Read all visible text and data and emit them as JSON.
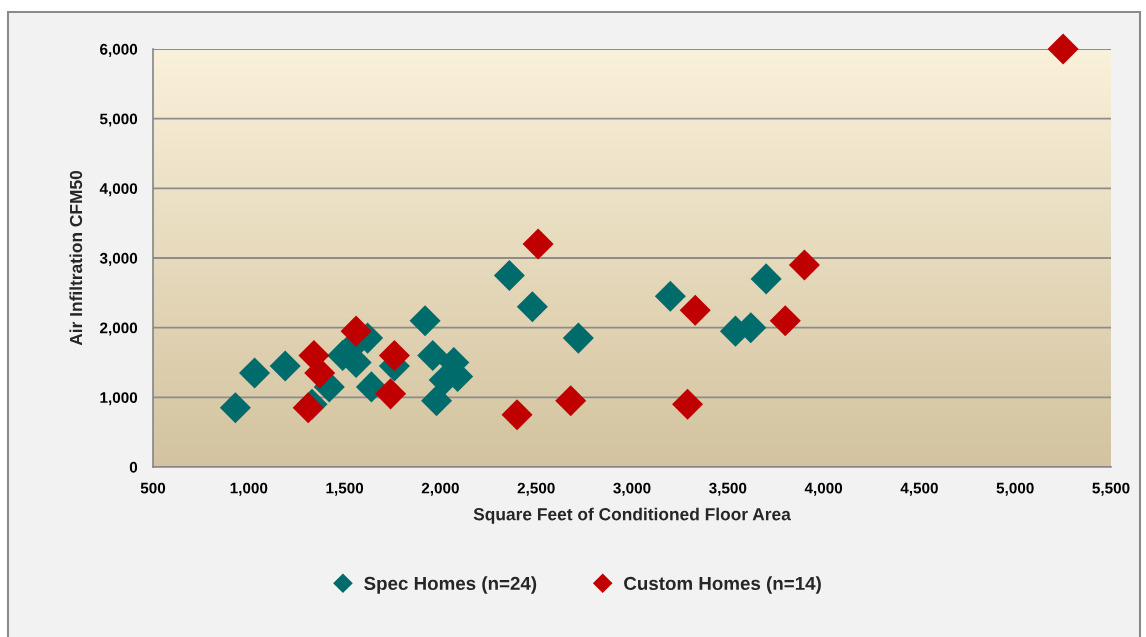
{
  "chart_data": {
    "type": "scatter",
    "xlabel": "Square Feet of Conditioned Floor Area",
    "ylabel": "Air Infiltration CFM50",
    "series": [
      {
        "name": "Spec Homes (n=24)",
        "color": "#006B6B",
        "x": [
          930,
          1030,
          1190,
          1330,
          1420,
          1490,
          1530,
          1560,
          1620,
          1640,
          1760,
          1920,
          1960,
          2070,
          2020,
          2090,
          1980,
          2360,
          2480,
          2720,
          3200,
          3540,
          3620,
          3700
        ],
        "values": [
          850,
          1350,
          1450,
          900,
          1150,
          1600,
          1700,
          1500,
          1850,
          1150,
          1450,
          2100,
          1600,
          1500,
          1250,
          1300,
          950,
          2750,
          2300,
          1850,
          2450,
          1950,
          2000,
          2700
        ]
      },
      {
        "name": "Custom Homes (n=14)",
        "color": "#C00000",
        "x": [
          1340,
          1370,
          1310,
          1560,
          1760,
          1740,
          2510,
          2400,
          2680,
          3330,
          3290,
          3800,
          3900,
          5250
        ],
        "values": [
          1600,
          1350,
          850,
          1950,
          1600,
          1050,
          3200,
          750,
          950,
          2250,
          900,
          2100,
          2900,
          6000
        ]
      }
    ],
    "xlim": [
      500,
      5500
    ],
    "xticks": [
      500,
      {
        "value": 1000,
        "label": "1,000"
      },
      {
        "value": 1500,
        "label": "1,500"
      },
      {
        "value": 2000,
        "label": "2,000"
      },
      {
        "value": 2500,
        "label": "2,500"
      },
      {
        "value": 3000,
        "label": "3,000"
      },
      {
        "value": 3500,
        "label": "3,500"
      },
      {
        "value": 4000,
        "label": "4,000"
      },
      {
        "value": 4500,
        "label": "4,500"
      },
      {
        "value": 5000,
        "label": "5,000"
      },
      {
        "value": 5500,
        "label": "5,500"
      }
    ],
    "ylim": [
      0,
      6000
    ],
    "yticks": [
      0,
      {
        "value": 1000,
        "label": "1,000"
      },
      {
        "value": 2000,
        "label": "2,000"
      },
      {
        "value": 3000,
        "label": "3,000"
      },
      {
        "value": 4000,
        "label": "4,000"
      },
      {
        "value": 5000,
        "label": "5,000"
      },
      {
        "value": 6000,
        "label": "6,000"
      }
    ],
    "grid": "y",
    "legend": "bottom",
    "marker": "diamond"
  }
}
